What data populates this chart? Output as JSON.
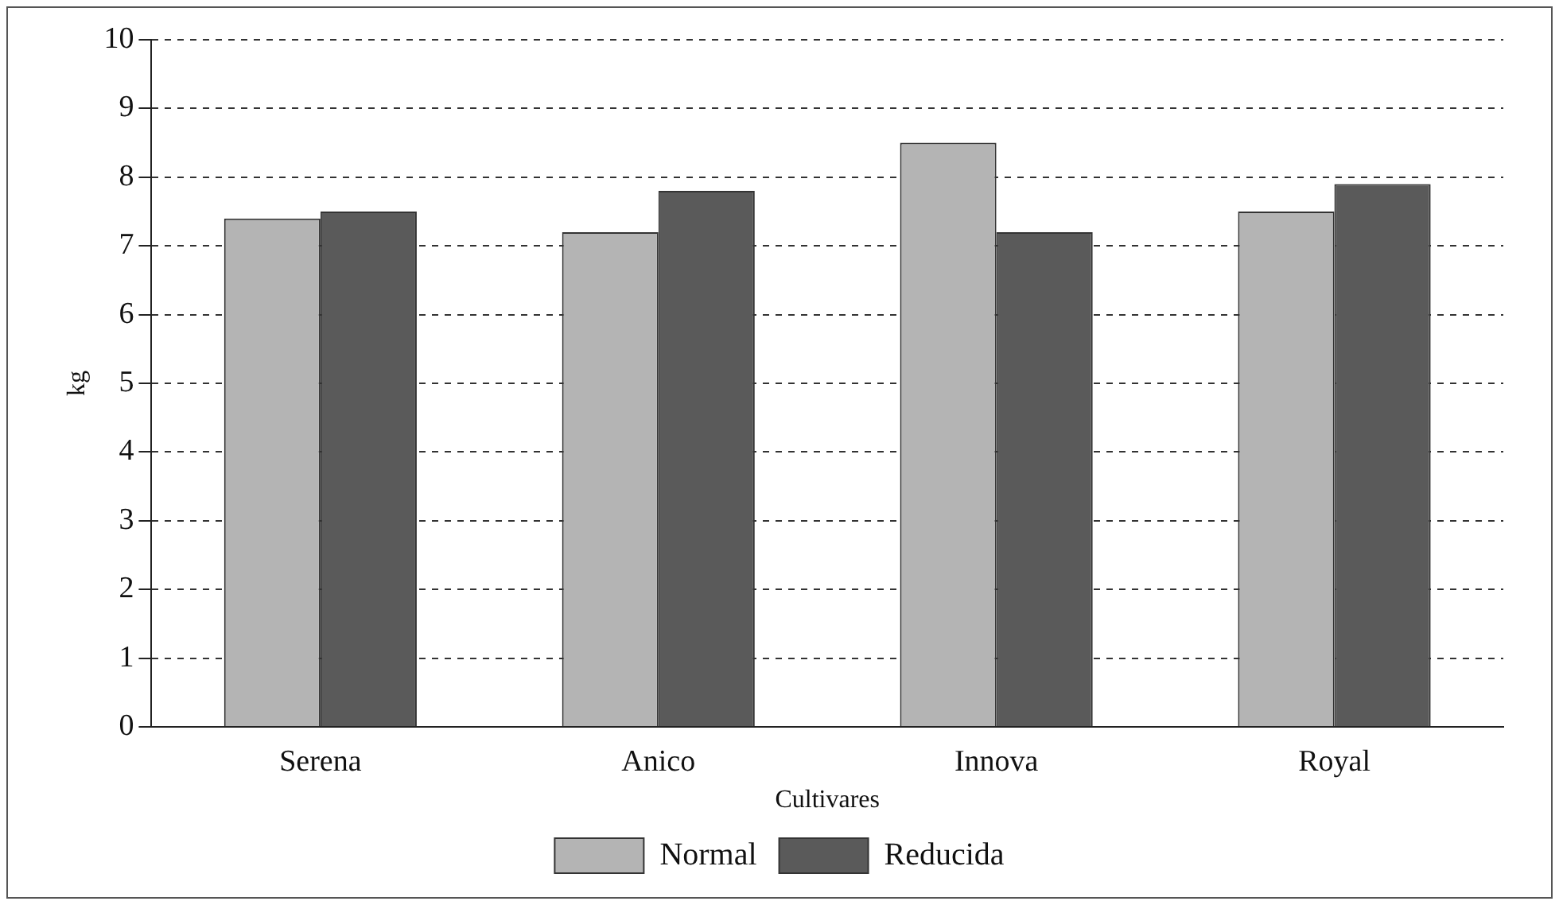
{
  "chart_data": {
    "type": "bar",
    "xlabel": "Cultivares",
    "ylabel": "kg",
    "categories": [
      "Serena",
      "Anico",
      "Innova",
      "Royal"
    ],
    "series": [
      {
        "name": "Normal",
        "color": "#b4b4b4",
        "values": [
          7.4,
          7.2,
          8.5,
          7.5
        ]
      },
      {
        "name": "Reducida",
        "color": "#5a5a5a",
        "values": [
          7.5,
          7.8,
          7.2,
          7.9
        ]
      }
    ],
    "ylim": [
      0,
      10
    ],
    "yticks": [
      0,
      1,
      2,
      3,
      4,
      5,
      6,
      7,
      8,
      9,
      10
    ],
    "grid": "y",
    "legend": "bottom"
  }
}
